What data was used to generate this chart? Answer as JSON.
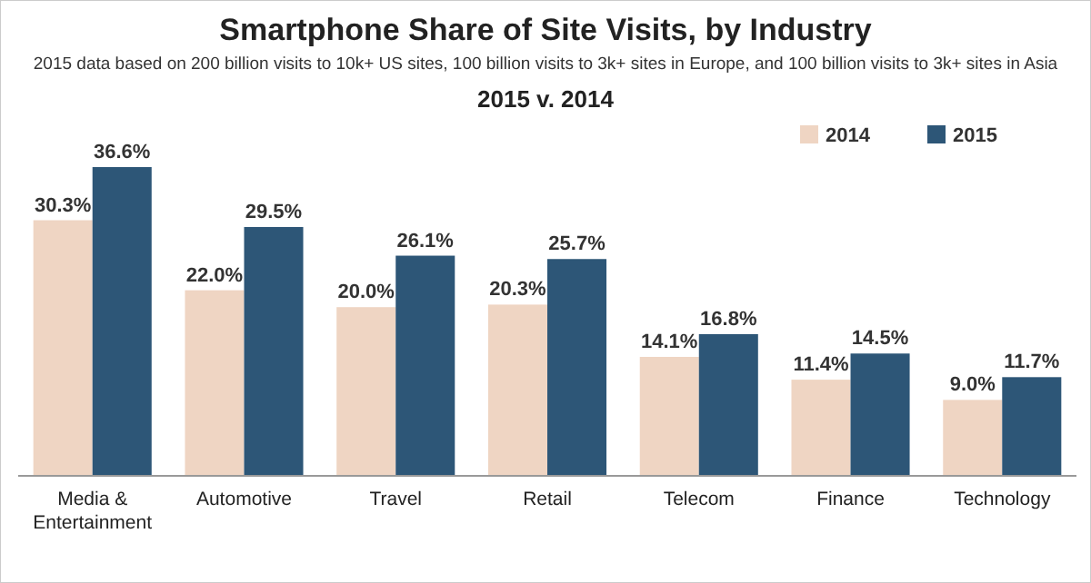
{
  "chart_data": {
    "type": "bar",
    "title": "Smartphone Share of Site Visits, by Industry",
    "subtitle": "2015 data based on 200 billion visits to 10k+ US sites, 100 billion visits to 3k+ sites in Europe, and 100 billion visits to 3k+ sites in Asia",
    "annotations": [
      "2015 v. 2014"
    ],
    "categories": [
      "Media & Entertainment",
      "Automotive",
      "Travel",
      "Retail",
      "Telecom",
      "Finance",
      "Technology"
    ],
    "series": [
      {
        "name": "2014",
        "color": "#efd5c3",
        "values": [
          30.3,
          22.0,
          20.0,
          20.3,
          14.1,
          11.4,
          9.0
        ],
        "value_labels": [
          "30.3%",
          "22.0%",
          "20.0%",
          "20.3%",
          "14.1%",
          "11.4%",
          "9.0%"
        ]
      },
      {
        "name": "2015",
        "color": "#2d5677",
        "values": [
          36.6,
          29.5,
          26.1,
          25.7,
          16.8,
          14.5,
          11.7
        ],
        "value_labels": [
          "36.6%",
          "29.5%",
          "26.1%",
          "25.7%",
          "16.8%",
          "14.5%",
          "11.7%"
        ]
      }
    ],
    "legend": "top right"
  }
}
